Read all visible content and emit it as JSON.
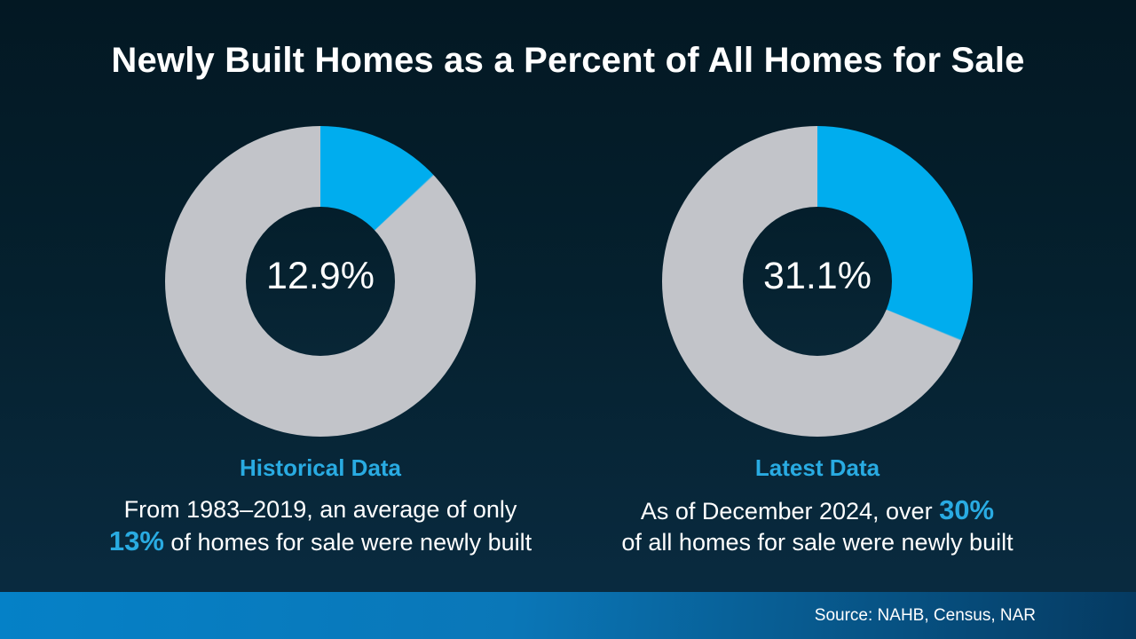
{
  "header": {
    "title": "Newly Built Homes as a Percent of All Homes for Sale"
  },
  "colors": {
    "accent_blue": "#00ADEE",
    "donut_gray": "#C2C4C9",
    "text_highlight_blue": "#29ABE2",
    "background_top": "#031823",
    "background_bottom": "#0A2C42",
    "footer_bar_left": "#0581C7",
    "footer_bar_right": "#053A61"
  },
  "chart_data": [
    {
      "type": "pie",
      "subtype": "donut",
      "title": "Historical Data",
      "center_label": "12.9%",
      "start_angle_deg": 0,
      "direction": "clockwise",
      "segments": [
        {
          "name": "newly built homes",
          "value": 12.9,
          "color": "#00ADEE"
        },
        {
          "name": "all other homes for sale",
          "value": 87.1,
          "color": "#C2C4C9"
        }
      ],
      "caption": {
        "pre": "From 1983–2019, an average of only\n",
        "highlight": "13%",
        "post": " of homes for sale were newly built"
      }
    },
    {
      "type": "pie",
      "subtype": "donut",
      "title": "Latest Data",
      "center_label": "31.1%",
      "start_angle_deg": 0,
      "direction": "clockwise",
      "segments": [
        {
          "name": "newly built homes",
          "value": 31.1,
          "color": "#00ADEE"
        },
        {
          "name": "all other homes for sale",
          "value": 68.9,
          "color": "#C2C4C9"
        }
      ],
      "caption": {
        "pre": "As of December 2024, over ",
        "highlight": "30%",
        "post": "\nof all homes for sale were newly built"
      }
    }
  ],
  "footer": {
    "source": "Source: NAHB, Census, NAR"
  }
}
